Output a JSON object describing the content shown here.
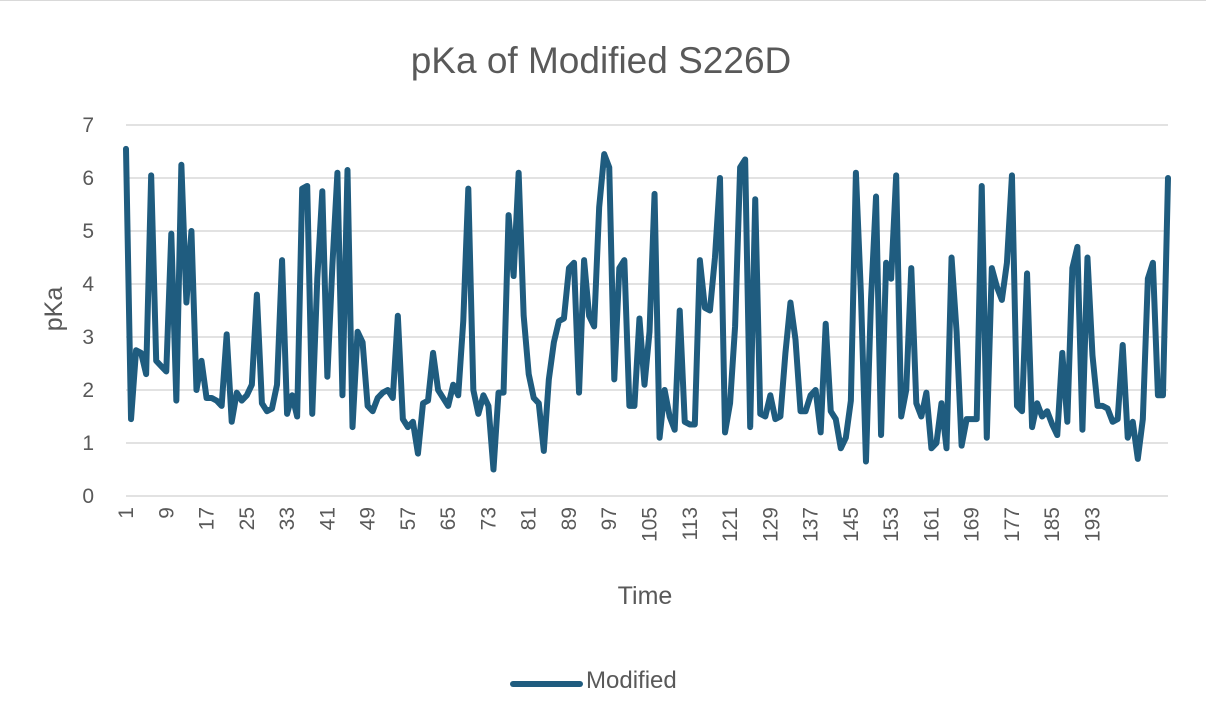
{
  "chart_data": {
    "type": "line",
    "title": "pKa of Modified S226D",
    "xlabel": "Time",
    "ylabel": "pKa",
    "ylim": [
      0,
      7
    ],
    "yticks": [
      0,
      1,
      2,
      3,
      4,
      5,
      6,
      7
    ],
    "x_tick_labels": [
      "1",
      "9",
      "17",
      "25",
      "33",
      "41",
      "49",
      "57",
      "65",
      "73",
      "81",
      "89",
      "97",
      "105",
      "113",
      "121",
      "129",
      "137",
      "145",
      "153",
      "161",
      "169",
      "177",
      "185",
      "193"
    ],
    "grid": "horizontal",
    "legend_position": "bottom",
    "colors": {
      "series": "#1f5c7f",
      "grid": "#d9d9d9",
      "text": "#595959"
    },
    "series": [
      {
        "name": "Modified",
        "x_start": 1,
        "values": [
          6.55,
          1.45,
          2.75,
          2.7,
          2.3,
          6.05,
          2.55,
          2.45,
          2.35,
          4.95,
          1.8,
          6.25,
          3.65,
          5.0,
          2.0,
          2.55,
          1.85,
          1.85,
          1.8,
          1.7,
          3.05,
          1.4,
          1.95,
          1.8,
          1.9,
          2.1,
          3.8,
          1.75,
          1.6,
          1.65,
          2.1,
          4.45,
          1.55,
          1.9,
          1.5,
          5.8,
          5.85,
          1.55,
          4.1,
          5.75,
          2.25,
          4.35,
          6.1,
          1.9,
          6.15,
          1.3,
          3.1,
          2.9,
          1.7,
          1.6,
          1.85,
          1.95,
          2.0,
          1.85,
          3.4,
          1.45,
          1.3,
          1.4,
          0.8,
          1.75,
          1.8,
          2.7,
          2.0,
          1.85,
          1.7,
          2.1,
          1.9,
          3.3,
          5.8,
          2.0,
          1.55,
          1.9,
          1.7,
          0.5,
          1.95,
          1.95,
          5.3,
          4.15,
          6.1,
          3.4,
          2.3,
          1.85,
          1.75,
          0.85,
          2.2,
          2.9,
          3.3,
          3.35,
          4.3,
          4.4,
          1.95,
          4.45,
          3.4,
          3.2,
          5.45,
          6.45,
          6.2,
          2.2,
          4.3,
          4.45,
          1.7,
          1.7,
          3.35,
          2.1,
          3.1,
          5.7,
          1.1,
          2.0,
          1.5,
          1.25,
          3.5,
          1.4,
          1.35,
          1.35,
          4.45,
          3.55,
          3.5,
          4.5,
          6.0,
          1.2,
          1.75,
          3.2,
          6.2,
          6.35,
          1.3,
          5.6,
          1.55,
          1.5,
          1.9,
          1.45,
          1.5,
          2.7,
          3.65,
          2.95,
          1.6,
          1.6,
          1.9,
          2.0,
          1.2,
          3.25,
          1.6,
          1.45,
          0.9,
          1.1,
          1.8,
          6.1,
          3.8,
          0.65,
          3.7,
          5.65,
          1.15,
          4.4,
          4.1,
          6.05,
          1.5,
          2.0,
          4.3,
          1.75,
          1.5,
          1.95,
          0.9,
          1.0,
          1.75,
          0.9,
          4.5,
          3.1,
          0.95,
          1.45,
          1.45,
          1.45,
          5.85,
          1.1,
          4.3,
          3.95,
          3.7,
          4.4,
          6.05,
          1.7,
          1.6,
          4.2,
          1.3,
          1.75,
          1.5,
          1.6,
          1.35,
          1.15,
          2.7,
          1.4,
          4.3,
          4.7,
          1.25,
          4.5,
          2.65,
          1.7,
          1.7,
          1.65,
          1.4,
          1.45,
          2.85,
          1.1,
          1.4,
          0.7,
          1.45,
          4.1,
          4.4,
          1.9,
          1.9,
          6.0
        ]
      }
    ]
  }
}
